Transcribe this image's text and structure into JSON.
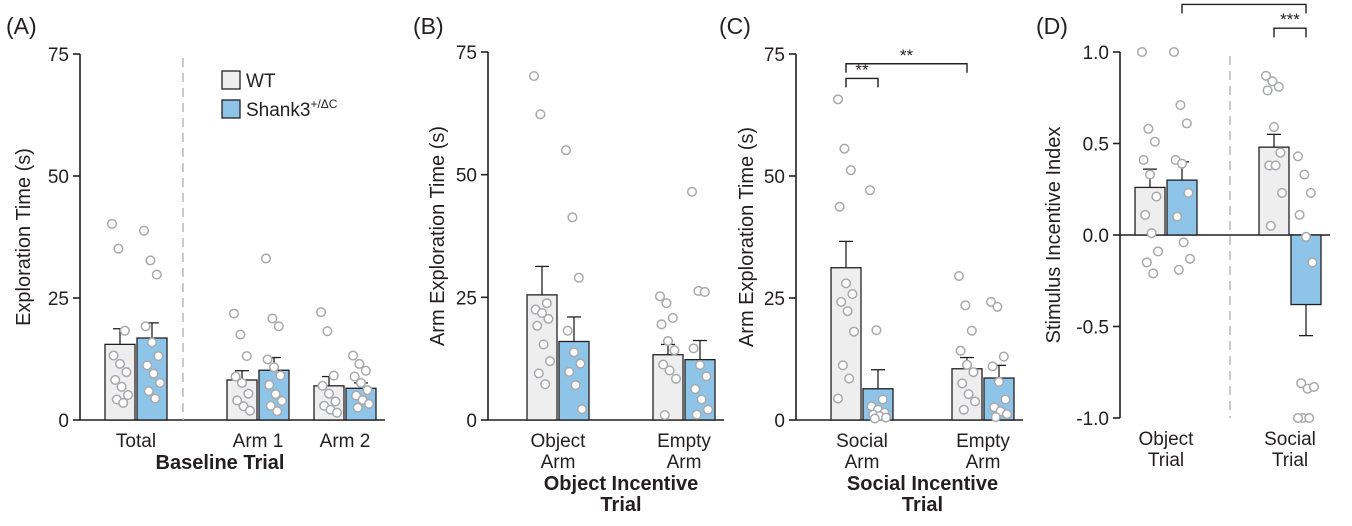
{
  "colors": {
    "wt": "#eeeeef",
    "shank3": "#8ec4e8",
    "axis": "#231f20",
    "dot": "#a7a9ac",
    "dashed": "#b9b9b9"
  },
  "legend": {
    "wt": "WT",
    "shank3_base": "Shank3",
    "shank3_sup": "+/ΔC"
  },
  "chart_data": [
    {
      "panel": "(A)",
      "type": "bar",
      "ylabel": "Exploration Time (s)",
      "ylim": [
        0,
        75
      ],
      "yticks": [
        "0",
        "25",
        "50",
        "75"
      ],
      "groups": [
        {
          "label_lines": [
            "Total"
          ],
          "wt": {
            "mean": 15.5,
            "sem": 3.2,
            "points": [
              40.2,
              35.1,
              18.3,
              13.2,
              11.5,
              9.8,
              8.2,
              6.8,
              5.1,
              4.2,
              3.5
            ]
          },
          "shank3": {
            "mean": 16.8,
            "sem": 3.1,
            "points": [
              38.8,
              32.7,
              29.8,
              19.2,
              15.9,
              13.1,
              11.2,
              9.5,
              7.6,
              5.9,
              4.4
            ]
          }
        },
        {
          "label_lines": [
            "Arm 1"
          ],
          "wt": {
            "mean": 8.2,
            "sem": 1.9,
            "points": [
              21.8,
              17.5,
              13.1,
              8.9,
              7.6,
              5.4,
              4.0,
              2.8,
              1.9
            ]
          },
          "shank3": {
            "mean": 10.2,
            "sem": 2.6,
            "points": [
              33.1,
              20.8,
              19.2,
              12.4,
              10.8,
              9.1,
              7.2,
              5.3,
              3.9,
              2.9,
              1.8
            ]
          }
        },
        {
          "label_lines": [
            "Arm 2"
          ],
          "wt": {
            "mean": 7.0,
            "sem": 1.9,
            "points": [
              22.1,
              18.2,
              9.1,
              7.0,
              5.4,
              3.8,
              2.9,
              2.1,
              1.5
            ]
          },
          "shank3": {
            "mean": 6.5,
            "sem": 1.1,
            "points": [
              13.2,
              11.5,
              10.1,
              8.9,
              7.6,
              6.1,
              5.0,
              4.1,
              3.3,
              2.5
            ]
          }
        }
      ],
      "xtitle_lines": [
        "Baseline Trial"
      ],
      "divider_after": 0,
      "brackets": []
    },
    {
      "panel": "(B)",
      "type": "bar",
      "ylabel": "Arm Exploration Time (s)",
      "ylim": [
        0,
        75
      ],
      "yticks": [
        "0",
        "25",
        "50",
        "75"
      ],
      "groups": [
        {
          "label_lines": [
            "Object",
            "Arm"
          ],
          "wt": {
            "mean": 25.5,
            "sem": 5.8,
            "points": [
              70.1,
              62.3,
              23.8,
              22.5,
              21.8,
              20.6,
              19.2,
              15.4,
              12.0,
              9.5,
              7.3
            ]
          },
          "shank3": {
            "mean": 16.0,
            "sem": 5.0,
            "points": [
              55.0,
              41.3,
              29.0,
              18.2,
              13.8,
              11.5,
              9.8,
              7.1,
              2.2
            ]
          }
        },
        {
          "label_lines": [
            "Empty",
            "Arm"
          ],
          "wt": {
            "mean": 13.3,
            "sem": 2.1,
            "points": [
              25.2,
              23.8,
              20.8,
              19.5,
              16.1,
              14.2,
              11.3,
              10.1,
              8.4,
              1.0
            ]
          },
          "shank3": {
            "mean": 12.3,
            "sem": 3.9,
            "points": [
              46.5,
              26.3,
              26.1,
              14.6,
              11.2,
              8.9,
              6.3,
              4.2,
              2.1,
              1.1
            ]
          }
        }
      ],
      "xtitle_lines": [
        "Object Incentive",
        "Trial"
      ],
      "divider_after": null,
      "brackets": []
    },
    {
      "panel": "(C)",
      "type": "bar",
      "ylabel": "Arm Exploration Time (s)",
      "ylim": [
        0,
        75
      ],
      "yticks": [
        "0",
        "25",
        "50",
        "75"
      ],
      "groups": [
        {
          "label_lines": [
            "Social",
            "Arm"
          ],
          "wt": {
            "mean": 31.2,
            "sem": 5.4,
            "points": [
              65.7,
              55.6,
              51.2,
              43.7,
              28.0,
              25.8,
              24.2,
              22.3,
              18.1,
              11.2,
              8.5,
              4.4
            ]
          },
          "shank3": {
            "mean": 6.4,
            "sem": 3.9,
            "points": [
              47.1,
              18.4,
              4.2,
              2.8,
              2.1,
              1.5,
              1.1,
              0.8,
              0.5,
              0.3
            ]
          }
        },
        {
          "label_lines": [
            "Empty",
            "Arm"
          ],
          "wt": {
            "mean": 10.5,
            "sem": 2.3,
            "points": [
              29.5,
              23.5,
              18.3,
              14.2,
              11.3,
              9.8,
              7.5,
              5.3,
              3.8,
              2.1
            ]
          },
          "shank3": {
            "mean": 8.6,
            "sem": 2.6,
            "points": [
              24.2,
              23.2,
              13.0,
              11.0,
              7.8,
              4.2,
              2.6,
              1.8,
              1.2,
              0.6
            ]
          }
        }
      ],
      "xtitle_lines": [
        "Social Incentive",
        "Trial"
      ],
      "divider_after": null,
      "brackets": [
        {
          "from": [
            0,
            "wt"
          ],
          "to": [
            0,
            "shank3"
          ],
          "y": 70,
          "label": "**"
        },
        {
          "from": [
            0,
            "wt"
          ],
          "to": [
            1,
            "wt"
          ],
          "y": 73,
          "label": "**"
        }
      ]
    },
    {
      "panel": "(D)",
      "type": "bar",
      "ylabel": "Stimulus Incentive Index",
      "ylim": [
        -1.0,
        1.0
      ],
      "yticks": [
        "-1.0",
        "-0.5",
        "0.0",
        "0.5",
        "1.0"
      ],
      "groups": [
        {
          "label_lines": [
            "Object",
            "Trial"
          ],
          "wt": {
            "mean": 0.26,
            "sem": 0.1,
            "points": [
              1.0,
              0.58,
              0.51,
              0.41,
              0.33,
              0.21,
              0.11,
              0.01,
              -0.09,
              -0.15,
              -0.21
            ]
          },
          "shank3": {
            "mean": 0.3,
            "sem": 0.1,
            "points": [
              1.0,
              0.71,
              0.61,
              0.41,
              0.39,
              0.23,
              0.1,
              -0.04,
              -0.13,
              -0.19
            ]
          }
        },
        {
          "label_lines": [
            "Social",
            "Trial"
          ],
          "wt": {
            "mean": 0.48,
            "sem": 0.07,
            "points": [
              0.87,
              0.84,
              0.81,
              0.79,
              0.59,
              0.45,
              0.38,
              0.38,
              0.23,
              0.05
            ]
          },
          "shank3": {
            "mean": -0.38,
            "sem": 0.17,
            "points": [
              0.43,
              0.33,
              0.23,
              0.11,
              -0.01,
              -0.15,
              -0.81,
              -0.84,
              -0.83,
              -1.0,
              -1.0,
              -1.0
            ]
          }
        }
      ],
      "xtitle_lines": [],
      "divider_after": 0,
      "brackets": [
        {
          "from": [
            1,
            "wt"
          ],
          "to": [
            1,
            "shank3"
          ],
          "y": 1.13,
          "label": "***"
        },
        {
          "from": [
            0,
            "shank3"
          ],
          "to": [
            1,
            "shank3"
          ],
          "y": 1.26,
          "label": "**"
        }
      ]
    }
  ]
}
